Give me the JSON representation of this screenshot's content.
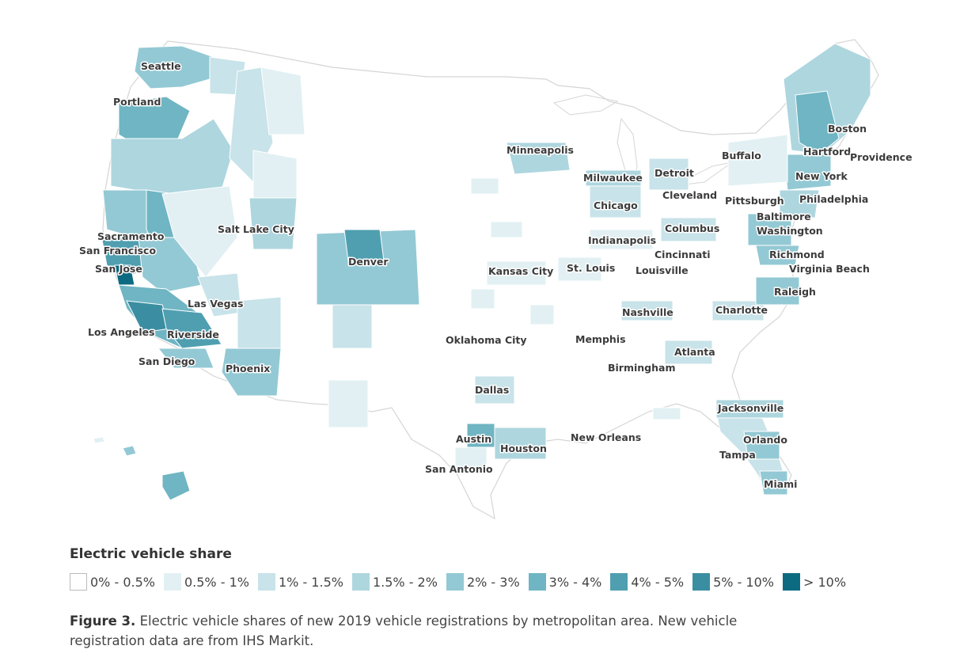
{
  "legend": {
    "title": "Electric vehicle share",
    "items": [
      {
        "label": "0% - 0.5%",
        "color": "#ffffff"
      },
      {
        "label": "0.5% - 1%",
        "color": "#e2f0f3"
      },
      {
        "label": "1% - 1.5%",
        "color": "#c8e3e9"
      },
      {
        "label": "1.5% - 2%",
        "color": "#aed6df"
      },
      {
        "label": "2% - 3%",
        "color": "#93c9d4"
      },
      {
        "label": "3% - 4%",
        "color": "#6fb5c3"
      },
      {
        "label": "4% - 5%",
        "color": "#4f9fb0"
      },
      {
        "label": "5% - 10%",
        "color": "#3b8ea1"
      },
      {
        "label": "> 10%",
        "color": "#0d6b81"
      }
    ]
  },
  "caption": {
    "figure_label": "Figure 3.",
    "text": "Electric vehicle shares of new 2019 vehicle registrations by metropolitan area. New vehicle registration data are from IHS Markit."
  },
  "cities": [
    "Seattle",
    "Portland",
    "Sacramento",
    "San Francisco",
    "San Jose",
    "Los Angeles",
    "Riverside",
    "San Diego",
    "Las Vegas",
    "Phoenix",
    "Salt Lake City",
    "Denver",
    "Minneapolis",
    "Milwaukee",
    "Detroit",
    "Cleveland",
    "Chicago",
    "Pittsburgh",
    "Buffalo",
    "Boston",
    "Hartford",
    "Providence",
    "New York",
    "Philadelphia",
    "Baltimore",
    "Washington",
    "Richmond",
    "Virginia Beach",
    "Raleigh",
    "Charlotte",
    "Columbus",
    "Indianapolis",
    "Cincinnati",
    "Louisville",
    "Kansas City",
    "St. Louis",
    "Nashville",
    "Memphis",
    "Atlanta",
    "Birmingham",
    "Oklahoma City",
    "Dallas",
    "Austin",
    "Houston",
    "San Antonio",
    "New Orleans",
    "Jacksonville",
    "Orlando",
    "Tampa",
    "Miami"
  ]
}
